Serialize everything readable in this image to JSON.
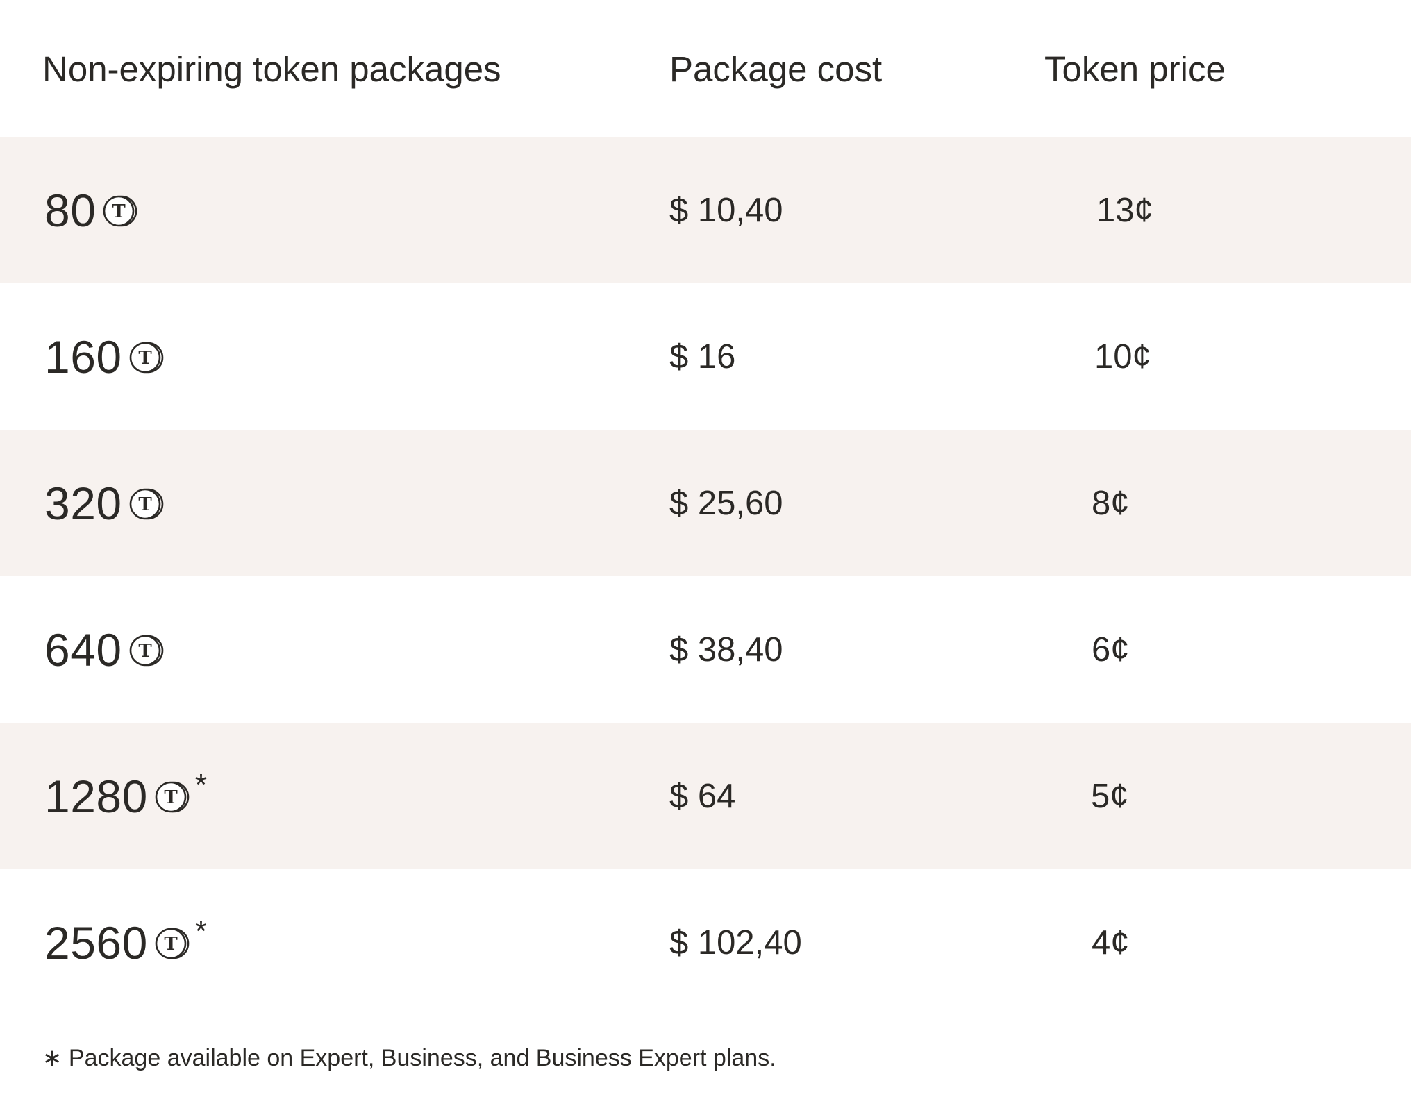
{
  "table": {
    "headers": {
      "packages": "Non-expiring token packages",
      "cost": "Package cost",
      "price": "Token price"
    },
    "rows": [
      {
        "tokens": "80",
        "cost": "$ 10,40",
        "price": "13¢",
        "asterisk": ""
      },
      {
        "tokens": "160",
        "cost": "$ 16",
        "price": "10¢",
        "asterisk": ""
      },
      {
        "tokens": "320",
        "cost": "$ 25,60",
        "price": "8¢",
        "asterisk": ""
      },
      {
        "tokens": "640",
        "cost": "$ 38,40",
        "price": "6¢",
        "asterisk": ""
      },
      {
        "tokens": "1280",
        "cost": "$ 64",
        "price": "5¢",
        "asterisk": "*"
      },
      {
        "tokens": "2560",
        "cost": "$ 102,40",
        "price": "4¢",
        "asterisk": "*"
      }
    ],
    "token_icon": "token-coin-icon",
    "icon_letter": "T"
  },
  "footnote": "∗ Package available on Expert, Business, and Business Expert plans.",
  "colors": {
    "text": "#2b2926",
    "row_shade": "#f7f2ef",
    "background": "#ffffff"
  }
}
